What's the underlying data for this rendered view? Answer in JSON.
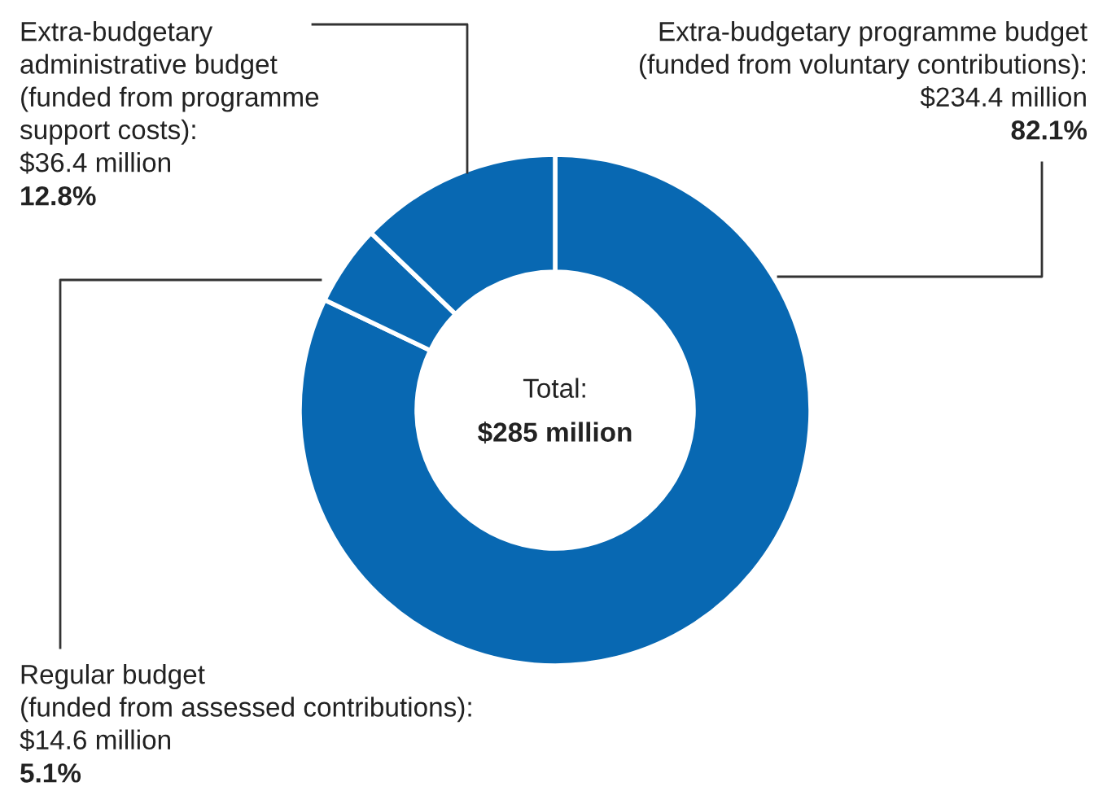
{
  "chart_data": {
    "type": "donut",
    "categories": [
      "Extra-budgetary programme budget\n(funded from voluntary contributions):\n$234.4 million",
      "Regular budget\n(funded from assessed contributions):\n$14.6 million",
      "Extra-budgetary\nadministrative budget\n(funded from programme\nsupport costs):\n$36.4 million"
    ],
    "values": [
      82.1,
      5.1,
      12.8
    ],
    "value_labels": [
      "82.1%",
      "5.1%",
      "12.8%"
    ],
    "colors": [
      "#0868b2",
      "#0868b2",
      "#0868b2"
    ],
    "annotations": [
      "Total:",
      "$285 million"
    ],
    "legend": false
  }
}
